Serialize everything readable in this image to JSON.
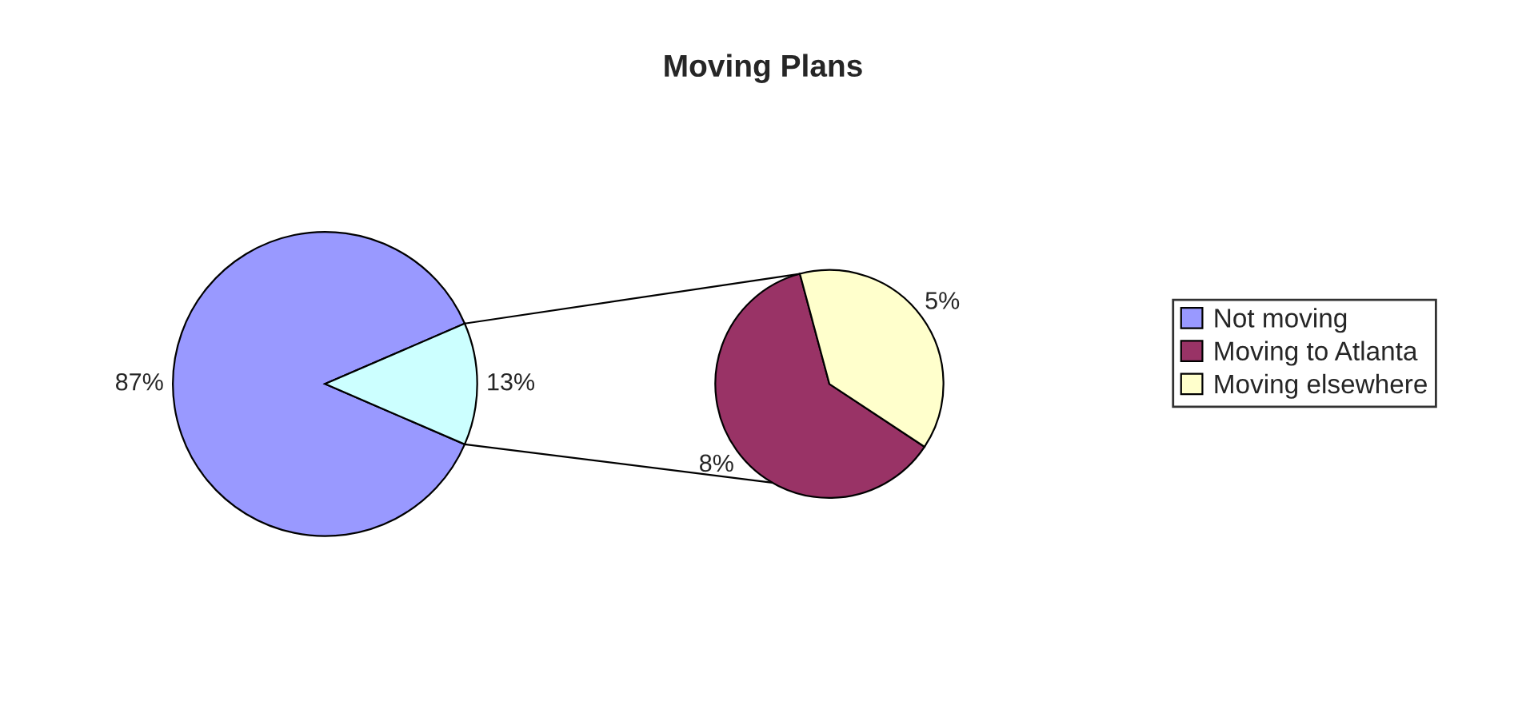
{
  "chart_data": [
    {
      "type": "pie",
      "title": "Moving Plans",
      "categories": [
        "Not moving",
        null
      ],
      "values": [
        87,
        13
      ],
      "colors": [
        "#9999ff",
        "#ccffff"
      ],
      "value_labels": [
        "87%",
        "13%"
      ],
      "legend": "right"
    },
    {
      "type": "pie",
      "categories": [
        "Moving to Atlanta",
        "Moving elsewhere"
      ],
      "values": [
        8,
        5
      ],
      "colors": [
        "#993366",
        "#ffffcc"
      ],
      "value_labels": [
        "8%",
        "5%"
      ],
      "legend": "right"
    }
  ]
}
